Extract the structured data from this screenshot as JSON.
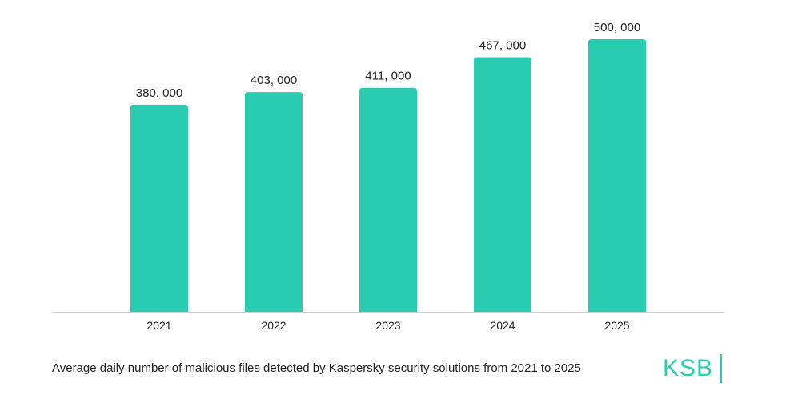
{
  "chart_data": {
    "type": "bar",
    "categories": [
      "2021",
      "2022",
      "2023",
      "2024",
      "2025"
    ],
    "values": [
      380000,
      403000,
      411000,
      467000,
      500000
    ],
    "value_labels": [
      "380, 000",
      "403, 000",
      "411, 000",
      "467, 000",
      "500, 000"
    ],
    "title": "",
    "xlabel": "",
    "ylabel": "",
    "ylim": [
      0,
      500000
    ],
    "grid": false,
    "legend": "none",
    "bar_color": "#29ccb1",
    "caption": "Average daily number of malicious files detected by Kaspersky security solutions from 2021 to 2025"
  },
  "brand": {
    "logo_text": "KSB",
    "logo_color": "#29ccb1"
  },
  "colors": {
    "axis": "#cfcfcf",
    "text": "#222222"
  }
}
